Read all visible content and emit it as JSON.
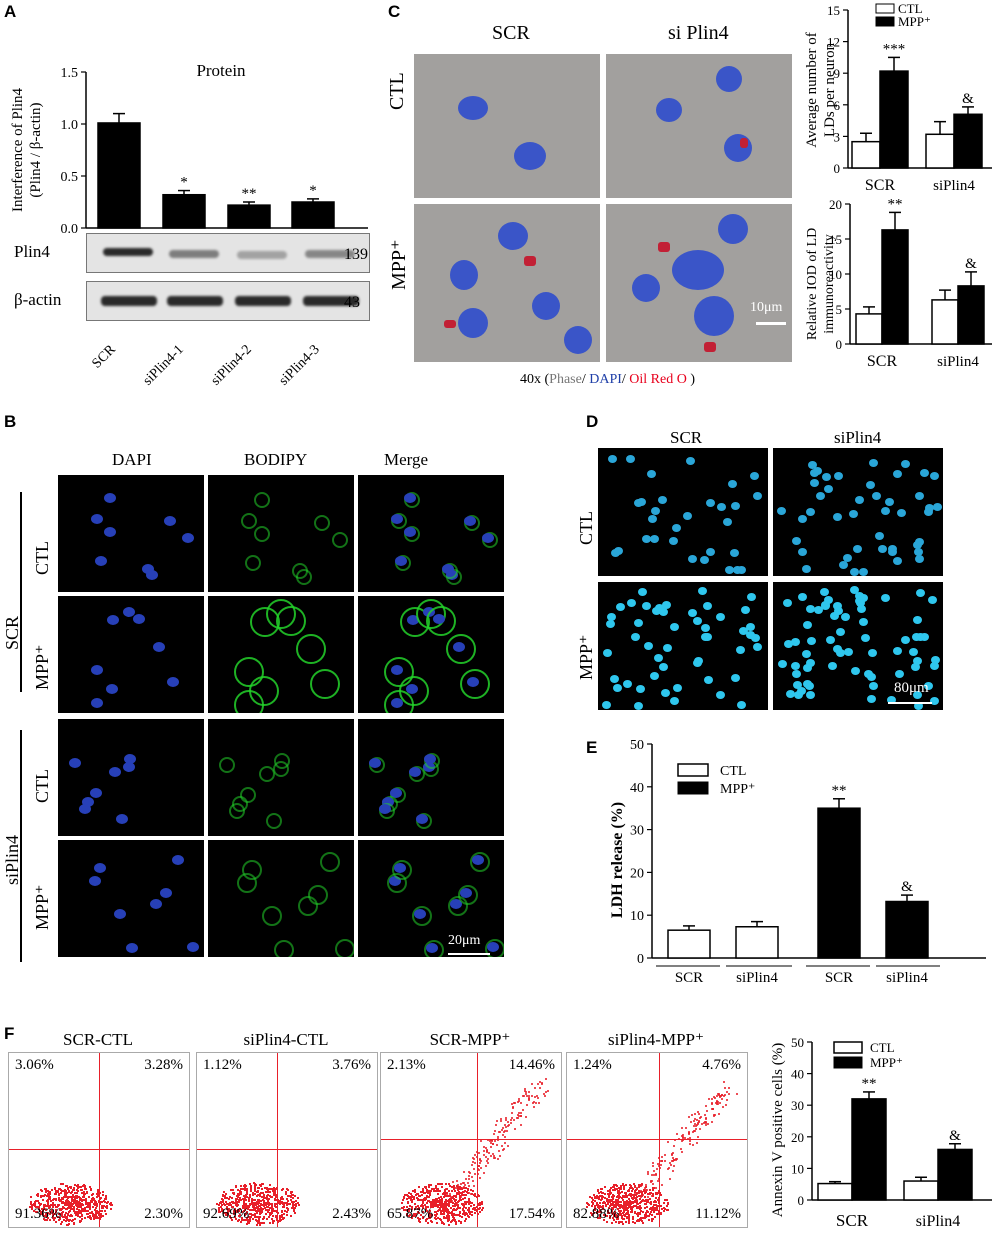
{
  "panels": {
    "A": "A",
    "B": "B",
    "C": "C",
    "D": "D",
    "E": "E",
    "F": "F"
  },
  "colors": {
    "bar_ctl": "#ffffff",
    "bar_mpp": "#000000",
    "oil_red": "#e8001c",
    "dapi": "#1f3fa8",
    "bodipy": "#23d12a",
    "flow_dots": "#e8202a"
  },
  "A": {
    "title": "Protein",
    "ylabel_line1": "Interference of Plin4",
    "ylabel_line2": "(Plin4 / β-actin)",
    "blot_labels": [
      "Plin4",
      "β-actin"
    ],
    "blot_kda": [
      "139",
      "43"
    ],
    "lanes": [
      "SCR",
      "siPlin4-1",
      "siPlin4-2",
      "siPlin4-3"
    ],
    "ticks": [
      "1.5",
      "1.0",
      "0.5",
      "0.0"
    ]
  },
  "B": {
    "col_headers": [
      "DAPI",
      "BODIPY",
      "Merge"
    ],
    "groups": [
      "SCR",
      "siPlin4"
    ],
    "row_labels": [
      "CTL",
      "MPP⁺",
      "CTL",
      "MPP⁺"
    ],
    "scale": "20μm"
  },
  "C": {
    "col_headers": [
      "SCR",
      "si Plin4"
    ],
    "row_labels": [
      "CTL",
      "MPP⁺"
    ],
    "scale": "10μm",
    "caption_prefix": "40x (",
    "caption_phase": "Phase",
    "caption_dapi": "DAPI",
    "caption_oil": "Oil Red O",
    "caption_suffix": " )",
    "chart1_ylabel_1": "Average number of",
    "chart1_ylabel_2": "LDs per neuron",
    "chart1_ticks": [
      "15",
      "12",
      "9",
      "6",
      "3",
      "0"
    ],
    "chart1_legend": [
      "CTL",
      "MPP⁺"
    ],
    "chart1_stars": [
      "***",
      "&"
    ],
    "chart2_ylabel_1": "Relative IOD of LD",
    "chart2_ylabel_2": "immunoreactivity",
    "chart2_ticks": [
      "20",
      "15",
      "10",
      "5",
      "0"
    ],
    "chart2_stars": [
      "**",
      "&"
    ],
    "groups": [
      "SCR",
      "siPlin4"
    ]
  },
  "D": {
    "col_headers": [
      "SCR",
      "siPlin4"
    ],
    "row_labels": [
      "CTL",
      "MPP⁺"
    ],
    "scale": "80μm"
  },
  "E": {
    "ylabel": "LDH release (%)",
    "ticks": [
      "50",
      "40",
      "30",
      "20",
      "10",
      "0"
    ],
    "legend": [
      "CTL",
      "MPP⁺"
    ],
    "groups": [
      "SCR",
      "siPlin4",
      "SCR",
      "siPlin4"
    ],
    "stars": [
      "**",
      "&"
    ]
  },
  "F": {
    "plots": [
      {
        "title": "SCR-CTL",
        "q": [
          "3.06%",
          "3.28%",
          "91.36%",
          "2.30%"
        ]
      },
      {
        "title": "siPlin4-CTL",
        "q": [
          "1.12%",
          "3.76%",
          "92.69%",
          "2.43%"
        ]
      },
      {
        "title": "SCR-MPP⁺",
        "q": [
          "2.13%",
          "14.46%",
          "65.87%",
          "17.54%"
        ]
      },
      {
        "title": "siPlin4-MPP⁺",
        "q": [
          "1.24%",
          "4.76%",
          "82.88%",
          "11.12%"
        ]
      }
    ],
    "ylabel": "Annexin V positive cells (%)",
    "ticks": [
      "50",
      "40",
      "30",
      "20",
      "10",
      "0"
    ],
    "legend": [
      "CTL",
      "MPP⁺"
    ],
    "groups": [
      "SCR",
      "siPlin4"
    ],
    "stars": [
      "**",
      "&"
    ]
  },
  "chart_data": [
    {
      "type": "bar",
      "title": "Protein",
      "ylabel": "Interference of Plin4 (Plin4 / β-actin)",
      "categories": [
        "SCR",
        "siPlin4-1",
        "siPlin4-2",
        "siPlin4-3"
      ],
      "values": [
        1.01,
        0.32,
        0.22,
        0.25
      ],
      "errors": [
        0.09,
        0.04,
        0.03,
        0.03
      ],
      "significance": [
        "",
        "*",
        "**",
        "*"
      ],
      "ylim": [
        0,
        1.5
      ]
    },
    {
      "type": "bar",
      "ylabel": "Average number of LDs per neuron",
      "categories": [
        "SCR",
        "siPlin4"
      ],
      "series": [
        {
          "name": "CTL",
          "values": [
            2.5,
            3.2
          ],
          "errors": [
            0.8,
            1.2
          ]
        },
        {
          "name": "MPP⁺",
          "values": [
            9.2,
            5.1
          ],
          "errors": [
            1.3,
            0.7
          ]
        }
      ],
      "ylim": [
        0,
        15
      ]
    },
    {
      "type": "bar",
      "ylabel": "Relative IOD of LD immunoreactivity",
      "categories": [
        "SCR",
        "siPlin4"
      ],
      "series": [
        {
          "name": "CTL",
          "values": [
            4.3,
            6.3
          ],
          "errors": [
            1.0,
            1.4
          ]
        },
        {
          "name": "MPP⁺",
          "values": [
            16.3,
            8.3
          ],
          "errors": [
            2.5,
            2.0
          ]
        }
      ],
      "ylim": [
        0,
        20
      ]
    },
    {
      "type": "bar",
      "ylabel": "LDH release (%)",
      "categories": [
        "SCR",
        "siPlin4",
        "SCR",
        "siPlin4"
      ],
      "values": [
        6.5,
        7.3,
        35.0,
        13.2
      ],
      "errors": [
        1.0,
        1.2,
        2.2,
        1.5
      ],
      "bar_fill": [
        "CTL",
        "CTL",
        "MPP⁺",
        "MPP⁺"
      ],
      "ylim": [
        0,
        50
      ]
    },
    {
      "type": "bar",
      "ylabel": "Annexin V positive cells (%)",
      "categories": [
        "SCR",
        "siPlin4"
      ],
      "series": [
        {
          "name": "CTL",
          "values": [
            5.2,
            6.0
          ],
          "errors": [
            0.6,
            1.2
          ]
        },
        {
          "name": "MPP⁺",
          "values": [
            32.0,
            16.0
          ],
          "errors": [
            2.2,
            1.8
          ]
        }
      ],
      "ylim": [
        0,
        50
      ]
    }
  ]
}
